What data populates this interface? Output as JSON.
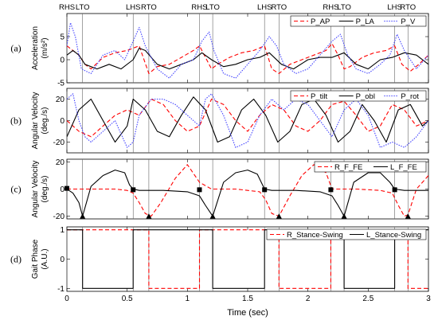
{
  "events": {
    "labels": [
      "RHS",
      "LTO",
      "LHS",
      "RTO",
      "RHS",
      "LTO",
      "LHS",
      "RTO",
      "RHS",
      "LTO",
      "LHS",
      "RTO"
    ],
    "times": [
      0.0,
      0.13,
      0.55,
      0.68,
      1.1,
      1.21,
      1.64,
      1.76,
      2.19,
      2.3,
      2.72,
      2.83
    ]
  },
  "xaxis": {
    "label": "Time (sec)",
    "range": [
      0,
      3
    ],
    "ticks": [
      0,
      0.5,
      1,
      1.5,
      2,
      2.5,
      3
    ],
    "tick_labels": [
      "0",
      "0.5",
      "1",
      "1.5",
      "2",
      "2.5",
      "3"
    ]
  },
  "chart_data": [
    {
      "type": "line",
      "panel_label": "(a)",
      "ylabel": "Acceleration (m/s²)",
      "ylim": [
        -5,
        10
      ],
      "yticks": [
        -5,
        0,
        5
      ],
      "legend_placement": "top-right",
      "series": [
        {
          "name": "P_AP",
          "color": "#ff0000",
          "dash": "dashed",
          "x": [
            0,
            0.05,
            0.1,
            0.15,
            0.2,
            0.3,
            0.4,
            0.5,
            0.55,
            0.6,
            0.68,
            0.75,
            0.85,
            0.95,
            1.05,
            1.1,
            1.15,
            1.2,
            1.25,
            1.35,
            1.45,
            1.55,
            1.64,
            1.7,
            1.76,
            1.85,
            1.95,
            2.05,
            2.15,
            2.2,
            2.25,
            2.3,
            2.35,
            2.45,
            2.55,
            2.65,
            2.72,
            2.78,
            2.85,
            2.92,
            3.0
          ],
          "values": [
            3,
            2,
            1,
            -1,
            -2,
            0.5,
            1.5,
            2,
            2.5,
            3,
            -3,
            -1.5,
            -1,
            0.5,
            2,
            3,
            0.5,
            -2,
            -1,
            0.5,
            1.5,
            2,
            3,
            -2,
            -3,
            -1,
            0,
            1,
            2,
            3.5,
            1,
            -2,
            -1.5,
            0.5,
            1.5,
            2,
            3,
            -1,
            -2.5,
            -1,
            1
          ]
        },
        {
          "name": "P_LA",
          "color": "#000000",
          "dash": "solid",
          "x": [
            0,
            0.05,
            0.1,
            0.15,
            0.25,
            0.35,
            0.45,
            0.55,
            0.6,
            0.65,
            0.75,
            0.85,
            0.95,
            1.05,
            1.12,
            1.2,
            1.3,
            1.4,
            1.5,
            1.6,
            1.68,
            1.78,
            1.88,
            2.0,
            2.1,
            2.2,
            2.3,
            2.4,
            2.5,
            2.6,
            2.7,
            2.8,
            2.9,
            3.0
          ],
          "values": [
            1,
            2,
            1,
            -1,
            -2,
            -1,
            -2,
            0,
            2.5,
            2,
            -1,
            -2,
            -1,
            0,
            1.5,
            0,
            -1.5,
            -1,
            0,
            0.5,
            1.5,
            -1,
            -2,
            0,
            0.5,
            0.5,
            1.5,
            -1,
            -2,
            0,
            0.5,
            1.5,
            1,
            -1
          ]
        },
        {
          "name": "P_V",
          "color": "#4444ff",
          "dash": "dotted",
          "x": [
            0,
            0.03,
            0.07,
            0.12,
            0.2,
            0.3,
            0.4,
            0.48,
            0.55,
            0.6,
            0.65,
            0.75,
            0.85,
            0.95,
            1.05,
            1.12,
            1.18,
            1.22,
            1.3,
            1.4,
            1.5,
            1.6,
            1.68,
            1.74,
            1.8,
            1.9,
            2.0,
            2.1,
            2.2,
            2.27,
            2.33,
            2.4,
            2.5,
            2.6,
            2.68,
            2.74,
            2.8,
            2.9,
            3.0
          ],
          "values": [
            3,
            8,
            5,
            -2,
            -3,
            1,
            2,
            0,
            4,
            7,
            3,
            -2,
            -4,
            -1,
            0,
            4,
            6,
            2,
            -3,
            -4,
            -1,
            2,
            5,
            3,
            -1,
            -3,
            -2,
            1,
            4,
            5.5,
            1,
            -2,
            -3,
            -1,
            1,
            5.5,
            2,
            -2,
            1
          ]
        }
      ]
    },
    {
      "type": "line",
      "panel_label": "(b)",
      "ylabel": "Angular Velocity (deg./s)",
      "ylim": [
        -30,
        30
      ],
      "yticks": [
        -20,
        0,
        20
      ],
      "legend_placement": "top-right",
      "series": [
        {
          "name": "P_tilt",
          "color": "#ff0000",
          "dash": "dashed",
          "x": [
            0,
            0.1,
            0.2,
            0.3,
            0.4,
            0.5,
            0.6,
            0.7,
            0.8,
            0.9,
            1.0,
            1.1,
            1.2,
            1.3,
            1.4,
            1.5,
            1.6,
            1.7,
            1.8,
            1.9,
            2.0,
            2.1,
            2.2,
            2.3,
            2.4,
            2.5,
            2.6,
            2.7,
            2.8,
            2.9,
            3.0
          ],
          "values": [
            0,
            -10,
            -15,
            -5,
            5,
            10,
            5,
            20,
            15,
            0,
            -10,
            -5,
            20,
            15,
            0,
            -10,
            5,
            15,
            10,
            -5,
            -10,
            0,
            15,
            18,
            5,
            -10,
            -5,
            15,
            10,
            -5,
            0
          ]
        },
        {
          "name": "P_obl",
          "color": "#000000",
          "dash": "solid",
          "x": [
            0,
            0.1,
            0.2,
            0.3,
            0.4,
            0.5,
            0.55,
            0.65,
            0.75,
            0.85,
            0.95,
            1.05,
            1.15,
            1.25,
            1.35,
            1.45,
            1.55,
            1.65,
            1.75,
            1.85,
            1.95,
            2.05,
            2.15,
            2.25,
            2.35,
            2.45,
            2.55,
            2.65,
            2.75,
            2.85,
            2.95,
            3.0
          ],
          "values": [
            -15,
            10,
            20,
            0,
            -20,
            -5,
            20,
            10,
            -10,
            -15,
            5,
            22,
            10,
            -20,
            -15,
            10,
            20,
            5,
            -20,
            -10,
            15,
            20,
            5,
            -20,
            -10,
            15,
            0,
            -20,
            10,
            15,
            -5,
            0
          ]
        },
        {
          "name": "P_rot",
          "color": "#4444ff",
          "dash": "dotted",
          "x": [
            0,
            0.05,
            0.1,
            0.15,
            0.2,
            0.3,
            0.4,
            0.5,
            0.55,
            0.6,
            0.7,
            0.8,
            0.9,
            1.0,
            1.1,
            1.15,
            1.2,
            1.3,
            1.4,
            1.5,
            1.6,
            1.7,
            1.8,
            1.9,
            2.0,
            2.1,
            2.2,
            2.3,
            2.4,
            2.5,
            2.6,
            2.7,
            2.8,
            2.9,
            3.0
          ],
          "values": [
            20,
            25,
            0,
            -15,
            -20,
            -10,
            0,
            -25,
            -20,
            5,
            20,
            20,
            15,
            5,
            -5,
            20,
            25,
            5,
            -25,
            -20,
            5,
            20,
            10,
            20,
            15,
            0,
            -15,
            10,
            20,
            5,
            -25,
            -20,
            -25,
            -15,
            0
          ]
        }
      ]
    },
    {
      "type": "line",
      "panel_label": "(c)",
      "ylabel": "Angular Velocity (deg./s)",
      "ylim": [
        -22,
        22
      ],
      "yticks": [
        -20,
        0,
        20
      ],
      "legend_placement": "top-right",
      "series": [
        {
          "name": "R_F_FE",
          "color": "#ff0000",
          "dash": "dashed",
          "x": [
            0,
            0.2,
            0.4,
            0.5,
            0.55,
            0.6,
            0.65,
            0.7,
            0.78,
            0.9,
            1.0,
            1.1,
            1.2,
            1.4,
            1.6,
            1.65,
            1.7,
            1.76,
            1.85,
            1.95,
            2.05,
            2.15,
            2.2,
            2.4,
            2.6,
            2.7,
            2.75,
            2.8,
            2.83,
            2.9,
            3.0
          ],
          "values": [
            0,
            0,
            0,
            -1,
            -3,
            -10,
            -18,
            -20,
            -10,
            8,
            18,
            5,
            0,
            0,
            -2,
            -8,
            -18,
            -20,
            -5,
            10,
            18,
            12,
            0,
            0,
            -1,
            -3,
            -12,
            -20,
            -19,
            0,
            10
          ]
        },
        {
          "name": "L_F_FE",
          "color": "#000000",
          "dash": "solid",
          "x": [
            0,
            0.05,
            0.1,
            0.13,
            0.2,
            0.3,
            0.4,
            0.48,
            0.52,
            0.55,
            0.6,
            0.8,
            1.0,
            1.1,
            1.15,
            1.21,
            1.3,
            1.4,
            1.5,
            1.58,
            1.64,
            1.7,
            1.9,
            2.1,
            2.2,
            2.25,
            2.3,
            2.38,
            2.5,
            2.6,
            2.68,
            2.72,
            2.8,
            3.0
          ],
          "values": [
            0,
            -3,
            -10,
            -20,
            2,
            10,
            14,
            12,
            3,
            0,
            -1,
            -1,
            -2,
            -5,
            -12,
            -20,
            5,
            12,
            14,
            11,
            0,
            -1,
            -1,
            -2,
            -5,
            -12,
            -20,
            5,
            12,
            12,
            5,
            0,
            -1,
            -1
          ]
        }
      ],
      "markers": {
        "squares": {
          "x": [
            0.0,
            0.55,
            1.1,
            1.64,
            2.19,
            2.72
          ],
          "values": [
            0.5,
            -0.5,
            -0.5,
            -0.5,
            -0.5,
            -0.5
          ]
        },
        "triangles": {
          "x": [
            0.13,
            0.68,
            1.21,
            1.76,
            2.3,
            2.83
          ],
          "values": [
            -20,
            -20,
            -20,
            -20,
            -20,
            -20
          ]
        }
      }
    },
    {
      "type": "line",
      "panel_label": "(d)",
      "ylabel": "Gait Phase (A.U.)",
      "ylim": [
        -1.1,
        1.1
      ],
      "yticks": [
        -1,
        0,
        1
      ],
      "legend_placement": "top-right",
      "series": [
        {
          "name": "R_Stance-Swing",
          "color": "#ff0000",
          "dash": "dashed",
          "x": [
            0,
            0.68,
            0.68,
            1.1,
            1.1,
            1.76,
            1.76,
            2.19,
            2.19,
            2.83,
            2.83,
            3.0
          ],
          "values": [
            1,
            1,
            -1,
            -1,
            1,
            1,
            -1,
            -1,
            1,
            1,
            -1,
            -1
          ]
        },
        {
          "name": "L_Stance-Swing",
          "color": "#000000",
          "dash": "solid",
          "x": [
            0,
            0.13,
            0.13,
            0.55,
            0.55,
            1.21,
            1.21,
            1.64,
            1.64,
            2.3,
            2.3,
            2.72,
            2.72,
            3.0
          ],
          "values": [
            1,
            1,
            -1,
            -1,
            1,
            1,
            -1,
            -1,
            1,
            1,
            -1,
            -1,
            1,
            1
          ]
        }
      ]
    }
  ]
}
